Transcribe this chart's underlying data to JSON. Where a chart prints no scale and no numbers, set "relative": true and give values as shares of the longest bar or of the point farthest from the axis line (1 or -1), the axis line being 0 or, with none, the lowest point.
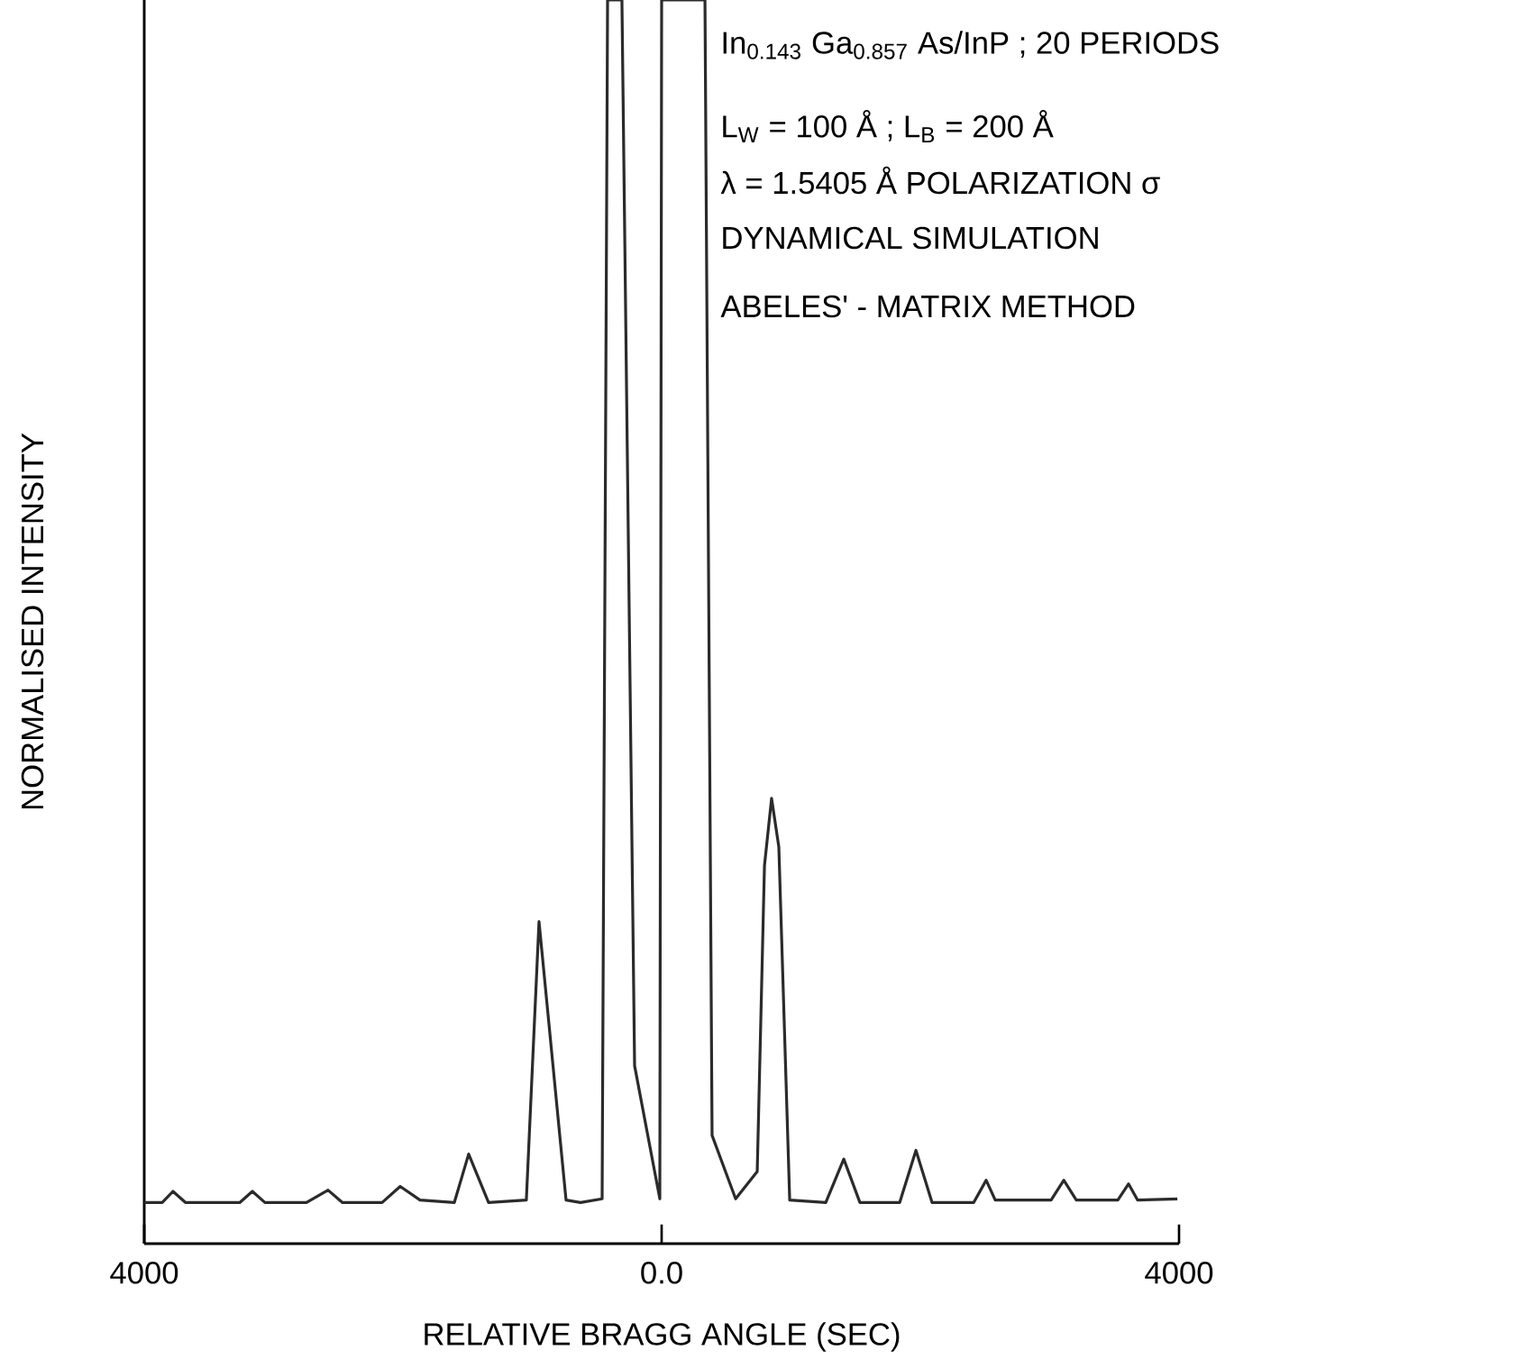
{
  "chart_data": {
    "type": "line",
    "relative": true,
    "xlabel": "RELATIVE BRAGG ANGLE (SEC)",
    "ylabel": "NORMALISED INTENSITY",
    "annotations": [
      "In$_{0.143}$ Ga$_{0.857}$ As/InP ; 20 PERIODS",
      "L$_{W}$ = 100 Å ; L$_{B}$ = 200 Å",
      "λ = 1.5405 Å POLARIZATION σ",
      "DYNAMICAL SIMULATION",
      "ABELES' - MATRIX METHOD"
    ],
    "xlim": [
      -4000,
      4000
    ],
    "xticks": [
      {
        "value": -4000,
        "label": "4000"
      },
      {
        "value": 0,
        "label": "0.0"
      },
      {
        "value": 4000,
        "label": "4000"
      }
    ],
    "grid": false,
    "marker": "none",
    "line_style": "solid",
    "series": [
      {
        "color": "#2b2b2b",
        "x": [
          -4000,
          -3861,
          -3778,
          -3680,
          -3262,
          -3164,
          -3067,
          -2746,
          -2579,
          -2467,
          -2161,
          -2021,
          -1868,
          -1603,
          -1492,
          -1338,
          -1046,
          -948,
          -739,
          -627,
          -460,
          -418,
          -307,
          -209,
          -14,
          0,
          167,
          335,
          390,
          572,
          739,
          795,
          850,
          906,
          990,
          1269,
          1408,
          1533,
          1840,
          1966,
          2091,
          2412,
          2509,
          2579,
          3011,
          3109,
          3206,
          3527,
          3610,
          3680,
          3987
        ],
        "values": [
          0.033,
          0.033,
          0.042,
          0.033,
          0.033,
          0.042,
          0.033,
          0.033,
          0.043,
          0.033,
          0.033,
          0.046,
          0.035,
          0.033,
          0.072,
          0.033,
          0.035,
          0.259,
          0.035,
          0.033,
          0.036,
          1,
          1,
          0.143,
          0.036,
          1,
          1,
          1,
          0.087,
          0.036,
          0.058,
          0.304,
          0.358,
          0.319,
          0.035,
          0.033,
          0.068,
          0.033,
          0.033,
          0.075,
          0.033,
          0.033,
          0.051,
          0.035,
          0.035,
          0.051,
          0.035,
          0.035,
          0.048,
          0.035,
          0.036
        ]
      }
    ]
  }
}
